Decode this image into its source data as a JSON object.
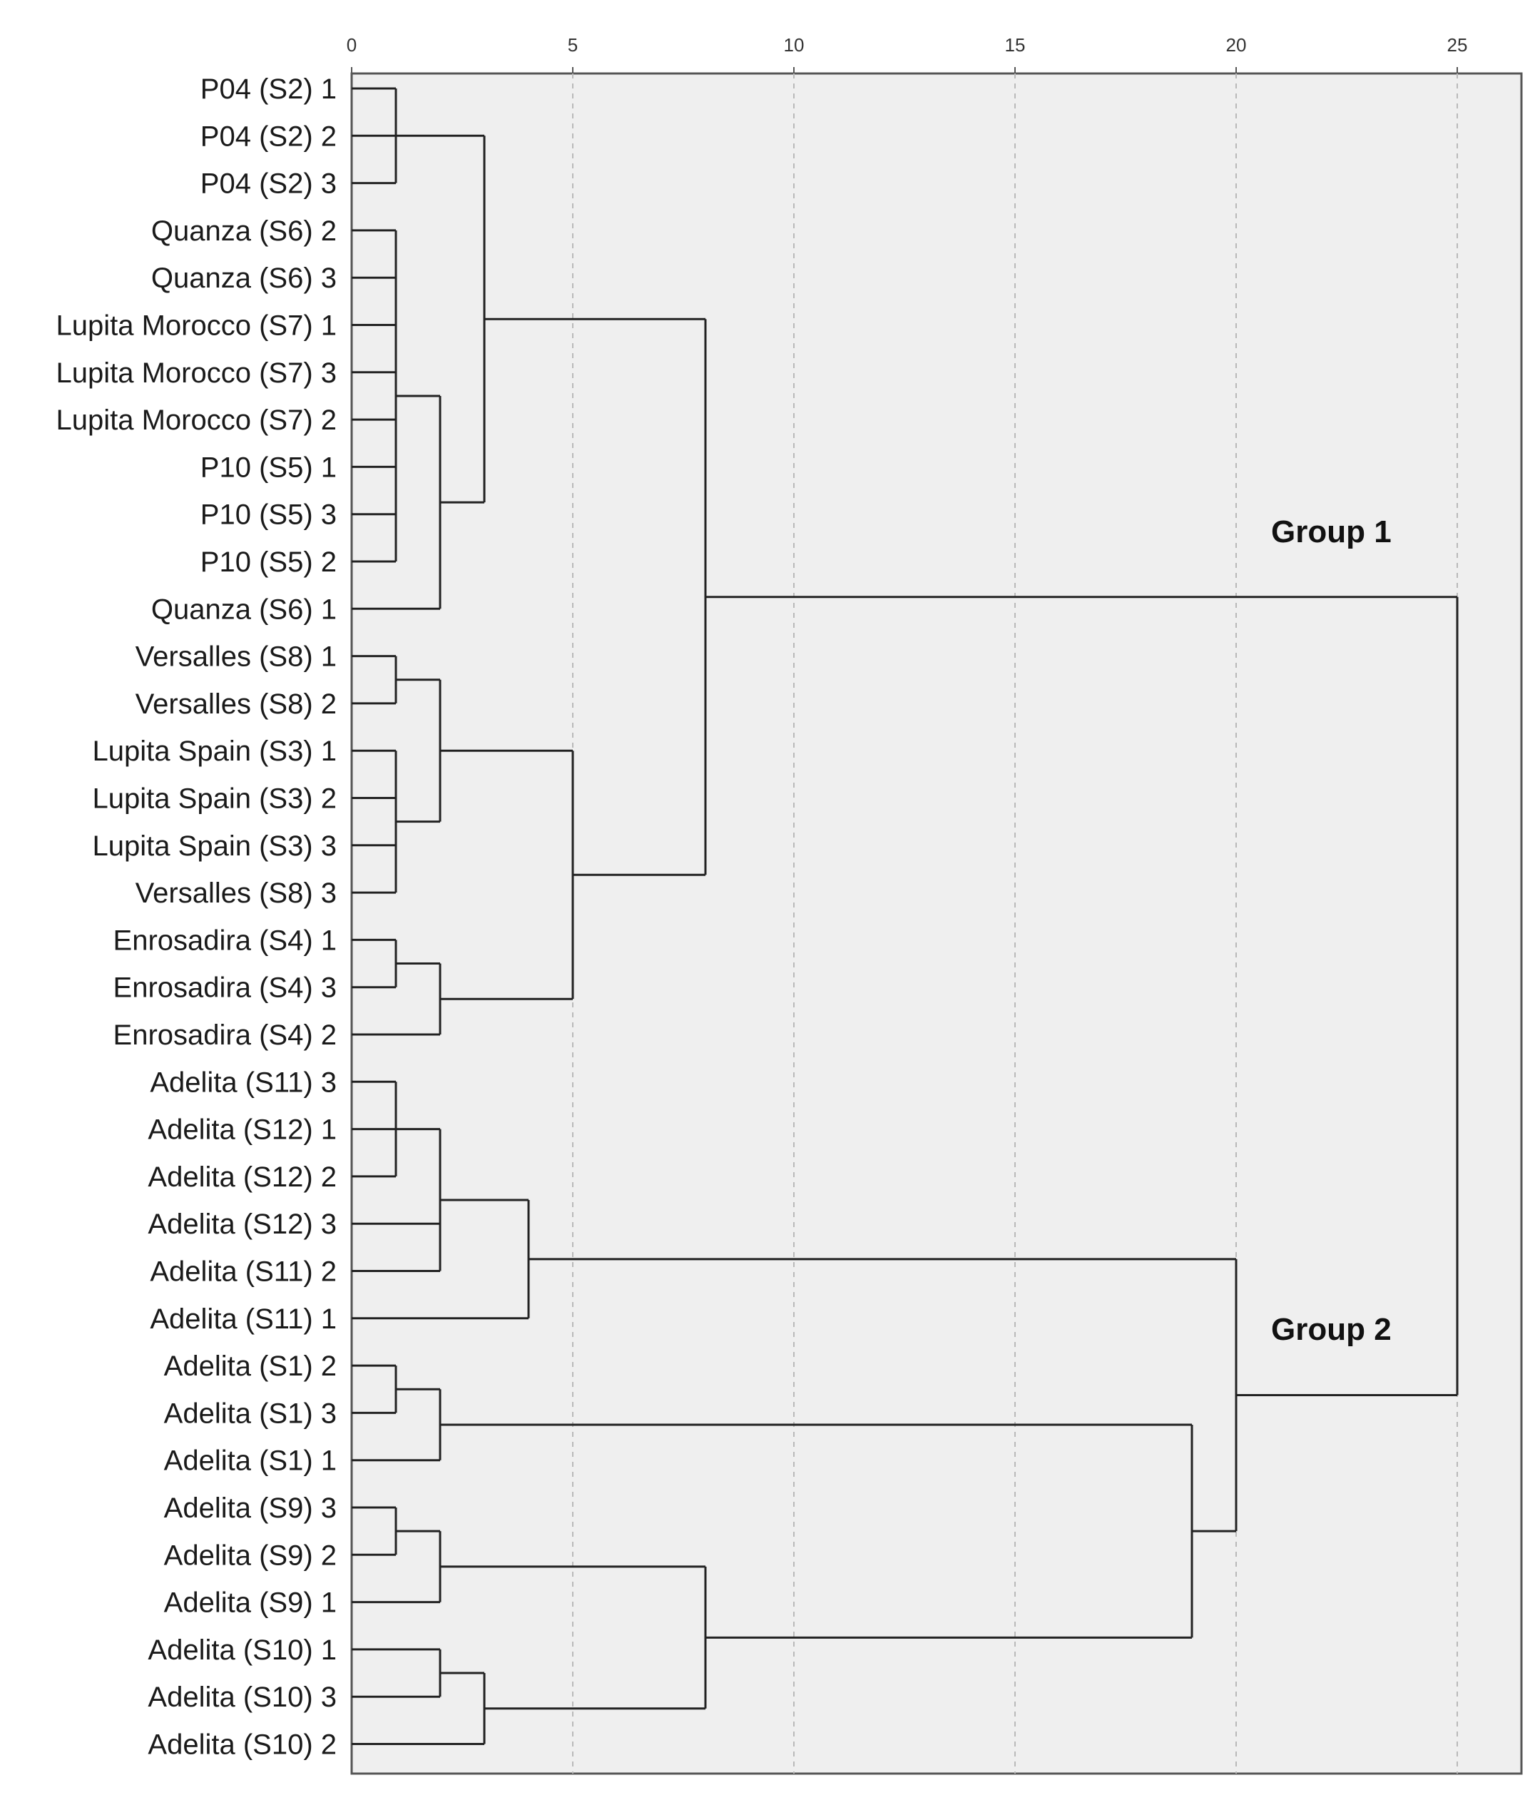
{
  "chart_data": {
    "type": "dendrogram",
    "title": "",
    "xlabel": "",
    "ylabel": "",
    "xlim": [
      0,
      26.3
    ],
    "x_ticks": [
      0,
      5,
      10,
      15,
      20,
      25
    ],
    "x_tick_labels": [
      "0",
      "5",
      "10",
      "15",
      "20",
      "25"
    ],
    "grid": true,
    "leaves": [
      "P04 (S2) 1",
      "P04 (S2) 2",
      "P04 (S2) 3",
      "Quanza (S6) 2",
      "Quanza (S6) 3",
      "Lupita Morocco (S7) 1",
      "Lupita Morocco (S7) 3",
      "Lupita Morocco (S7) 2",
      "P10 (S5) 1",
      "P10 (S5) 3",
      "P10 (S5) 2",
      "Quanza (S6) 1",
      "Versalles (S8) 1",
      "Versalles (S8) 2",
      "Lupita Spain (S3) 1",
      "Lupita Spain (S3) 2",
      "Lupita Spain (S3) 3",
      "Versalles (S8) 3",
      "Enrosadira (S4) 1",
      "Enrosadira (S4) 3",
      "Enrosadira (S4) 2",
      "Adelita (S11) 3",
      "Adelita (S12) 1",
      "Adelita (S12) 2",
      "Adelita (S12) 3",
      "Adelita (S11) 2",
      "Adelita (S11) 1",
      "Adelita (S1) 2",
      "Adelita (S1) 3",
      "Adelita (S1) 1",
      "Adelita (S9) 3",
      "Adelita (S9) 2",
      "Adelita (S9) 1",
      "Adelita (S10) 1",
      "Adelita (S10) 3",
      "Adelita (S10) 2"
    ],
    "merges": [
      {
        "height": 1,
        "children": [
          "P04 (S2) 1",
          "P04 (S2) 2",
          "P04 (S2) 3"
        ]
      },
      {
        "height": 1,
        "children": [
          "Quanza (S6) 2",
          "Quanza (S6) 3",
          "Lupita Morocco (S7) 1",
          "Lupita Morocco (S7) 3",
          "Lupita Morocco (S7) 2",
          "P10 (S5) 1",
          "P10 (S5) 3",
          "P10 (S5) 2"
        ]
      },
      {
        "height": 2,
        "children": [
          "c1",
          "Quanza (S6) 1"
        ]
      },
      {
        "height": 3,
        "children": [
          "c0",
          "c2"
        ]
      },
      {
        "height": 1,
        "children": [
          "Versalles (S8) 1",
          "Versalles (S8) 2"
        ]
      },
      {
        "height": 1,
        "children": [
          "Lupita Spain (S3) 1",
          "Lupita Spain (S3) 2",
          "Lupita Spain (S3) 3",
          "Versalles (S8) 3"
        ]
      },
      {
        "height": 2,
        "children": [
          "c4",
          "c5"
        ]
      },
      {
        "height": 1,
        "children": [
          "Enrosadira (S4) 1",
          "Enrosadira (S4) 3"
        ]
      },
      {
        "height": 2,
        "children": [
          "c7",
          "Enrosadira (S4) 2"
        ]
      },
      {
        "height": 5,
        "children": [
          "c6",
          "c8"
        ]
      },
      {
        "height": 8,
        "children": [
          "c3",
          "c9"
        ]
      },
      {
        "height": 1,
        "children": [
          "Adelita (S11) 3",
          "Adelita (S12) 1",
          "Adelita (S12) 2"
        ]
      },
      {
        "height": 2,
        "children": [
          "c11",
          "Adelita (S12) 3",
          "Adelita (S11) 2"
        ]
      },
      {
        "height": 4,
        "children": [
          "c12",
          "Adelita (S11) 1"
        ]
      },
      {
        "height": 1,
        "children": [
          "Adelita (S1) 2",
          "Adelita (S1) 3"
        ]
      },
      {
        "height": 2,
        "children": [
          "c14",
          "Adelita (S1) 1"
        ]
      },
      {
        "height": 1,
        "children": [
          "Adelita (S9) 3",
          "Adelita (S9) 2"
        ]
      },
      {
        "height": 2,
        "children": [
          "c16",
          "Adelita (S9) 1"
        ]
      },
      {
        "height": 2,
        "children": [
          "Adelita (S10) 1",
          "Adelita (S10) 3"
        ]
      },
      {
        "height": 3,
        "children": [
          "c18",
          "Adelita (S10) 2"
        ]
      },
      {
        "height": 8,
        "children": [
          "c17",
          "c19"
        ]
      },
      {
        "height": 19,
        "children": [
          "c15",
          "c20"
        ]
      },
      {
        "height": 20,
        "children": [
          "c13",
          "c21"
        ]
      },
      {
        "height": 25,
        "children": [
          "c10",
          "c22"
        ]
      }
    ],
    "annotations": [
      "Group 1",
      "Group 2"
    ]
  },
  "colors": {
    "plot_background": "#efefef",
    "branch": "#222222",
    "grid": "#b9b9b9",
    "frame": "#555555"
  }
}
